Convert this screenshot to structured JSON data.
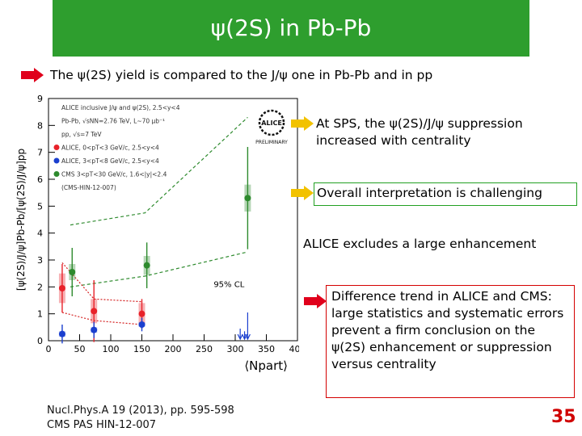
{
  "slide": {
    "title": "ψ(2S) in Pb-Pb",
    "intro": "The ψ(2S) yield is compared to the J/ψ one in Pb-Pb and in pp",
    "point1": "At SPS, the ψ(2S)/J/ψ suppression increased with centrality",
    "point2": "Overall interpretation is challenging",
    "point3": "ALICE excludes a large enhancement",
    "point4": "Difference trend in ALICE and CMS: large statistics and systematic errors prevent a firm conclusion on the ψ(2S) enhancement or suppression versus centrality",
    "ref1": "Nucl.Phys.A 19 (2013), pp. 595-598",
    "ref2": "CMS PAS HIN-12-007",
    "page": "35",
    "logo_text": "ALICE",
    "logo_sub": "PRELIMINARY"
  },
  "colors": {
    "title_bg": "#2e9e2e",
    "arrow_red": "#e0001b",
    "arrow_yellow": "#f2c200",
    "page_num": "#d00000"
  },
  "chart_data": {
    "type": "scatter",
    "ylabel": "[ψ(2S)/J/ψ]Pb-Pb/[ψ(2S)/J/ψ]pp",
    "xlabel": "⟨Npart⟩",
    "xlim": [
      0,
      400
    ],
    "ylim": [
      0,
      9
    ],
    "xticks": [
      0,
      50,
      100,
      150,
      200,
      250,
      300,
      350,
      400
    ],
    "yticks": [
      0,
      1,
      2,
      3,
      4,
      5,
      6,
      7,
      8,
      9
    ],
    "legend": [
      "ALICE inclusive J/ψ and ψ(2S), 2.5<y<4",
      "Pb-Pb, √sNN=2.76 TeV, L~70 μb⁻¹",
      "pp, √s=7 TeV",
      "ALICE, 0<pT<3 GeV/c, 2.5<y<4",
      "ALICE, 3<pT<8 GeV/c, 2.5<y<4",
      "CMS 3<pT<30 GeV/c, 1.6<|y|<2.4",
      "(CMS-HIN-12-007)"
    ],
    "cl_label": "95% CL",
    "series": [
      {
        "name": "ALICE, 0<pT<3 GeV/c, 2.5<y<4",
        "color": "#e8222a",
        "x": [
          22,
          73,
          150
        ],
        "y": [
          1.95,
          1.1,
          1.0
        ],
        "stat": [
          0.9,
          1.15,
          0.55
        ],
        "syst": [
          0.55,
          0.45,
          0.4
        ]
      },
      {
        "name": "ALICE, 3<pT<8 GeV/c, 2.5<y<4",
        "color": "#1a3fcf",
        "x": [
          22,
          73,
          150
        ],
        "y": [
          0.25,
          0.4,
          0.6
        ],
        "stat": [
          0.35,
          0.3,
          0.25
        ],
        "syst": [
          0.1,
          0.1,
          0.08
        ]
      },
      {
        "name": "CMS 3<pT<30 GeV/c, 1.6<|y|<2.4",
        "color": "#2d8a2d",
        "x": [
          38,
          158,
          320
        ],
        "y": [
          2.55,
          2.8,
          5.3
        ],
        "stat": [
          0.9,
          0.85,
          1.9
        ],
        "syst": [
          0.3,
          0.35,
          0.5
        ]
      }
    ],
    "upper_limit": {
      "x": [
        308,
        315,
        320
      ],
      "y": [
        0.45,
        0.35,
        1.05
      ]
    },
    "curves": [
      {
        "name": "upper band",
        "x": [
          35,
          155,
          320
        ],
        "y": [
          4.3,
          4.75,
          8.3
        ]
      },
      {
        "name": "lower band",
        "x": [
          35,
          155,
          320
        ],
        "y": [
          2.0,
          2.4,
          3.3
        ]
      },
      {
        "name": "alice dotted",
        "x": [
          22,
          73,
          150
        ],
        "y": [
          2.9,
          1.55,
          1.45
        ]
      },
      {
        "name": "alice dotted low",
        "x": [
          22,
          73,
          150
        ],
        "y": [
          1.05,
          0.75,
          0.6
        ]
      }
    ]
  }
}
